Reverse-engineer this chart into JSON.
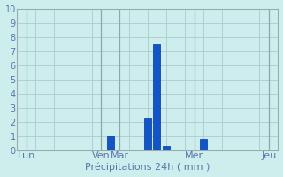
{
  "title": "Précipitations 24h ( mm )",
  "background_color": "#ceeeed",
  "grid_color": "#aacccc",
  "bar_color": "#1155cc",
  "bar_edge_color": "#0033aa",
  "ylim": [
    0,
    10
  ],
  "yticks": [
    0,
    1,
    2,
    3,
    4,
    5,
    6,
    7,
    8,
    9,
    10
  ],
  "xlim": [
    -0.5,
    13.5
  ],
  "day_labels": [
    "Lun",
    "Ven",
    "Mar",
    "Mer",
    "Jeu"
  ],
  "day_positions": [
    0,
    4,
    5,
    9,
    13
  ],
  "bars": [
    {
      "x": 4.5,
      "height": 1.0
    },
    {
      "x": 6.5,
      "height": 2.3
    },
    {
      "x": 7.0,
      "height": 7.5
    },
    {
      "x": 7.5,
      "height": 0.3
    },
    {
      "x": 9.5,
      "height": 0.8
    }
  ],
  "bar_width": 0.38,
  "xlabel_fontsize": 8,
  "tick_fontsize": 7,
  "label_color": "#5577aa"
}
